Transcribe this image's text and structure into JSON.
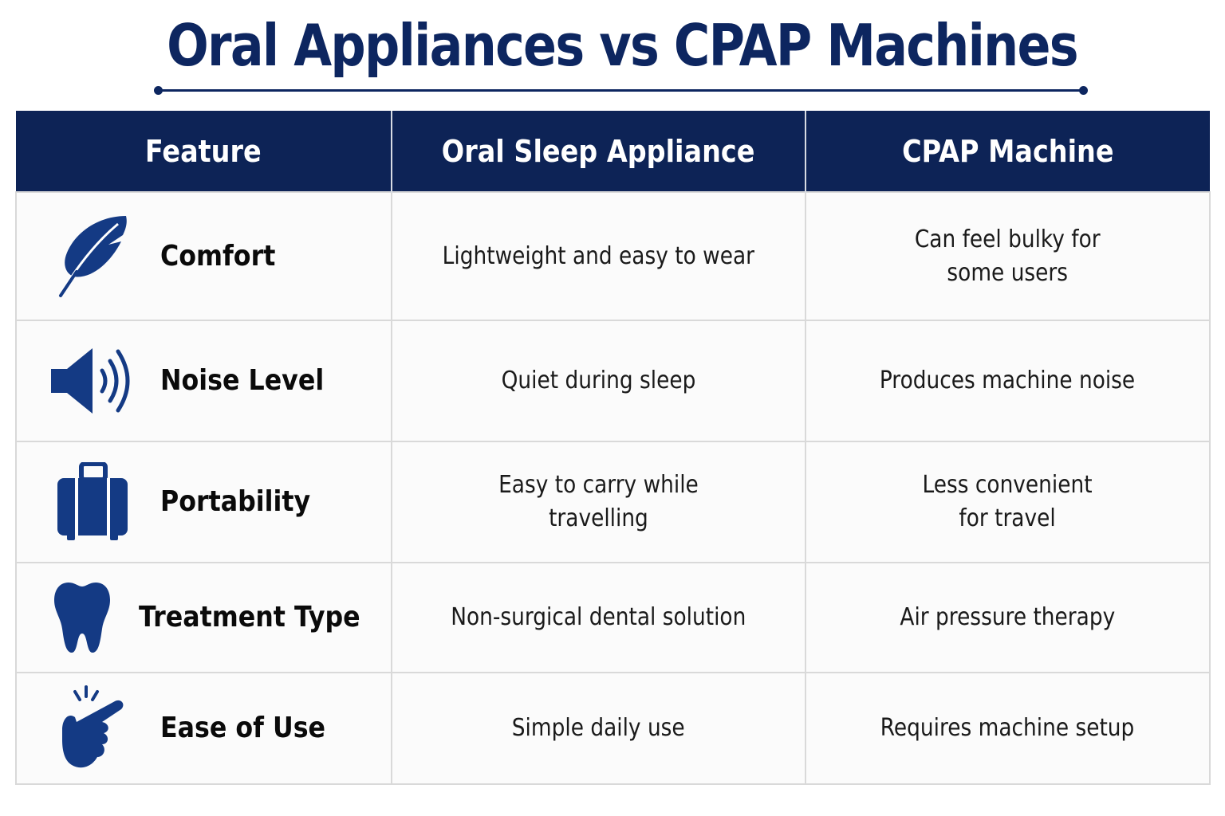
{
  "title": "Oral Appliances vs CPAP Machines",
  "colors": {
    "navy": "#0d2356",
    "icon": "#143a84",
    "title": "#0d2660"
  },
  "table": {
    "headers": [
      "Feature",
      "Oral Sleep Appliance",
      "CPAP Machine"
    ],
    "rows": [
      {
        "icon": "feather-icon",
        "feature": "Comfort",
        "oral": "Lightweight and easy to wear",
        "cpap": "Can feel bulky for\nsome users"
      },
      {
        "icon": "speaker-icon",
        "feature": "Noise Level",
        "oral": "Quiet during sleep",
        "cpap": "Produces machine noise"
      },
      {
        "icon": "suitcase-icon",
        "feature": "Portability",
        "oral": "Easy to carry while\ntravelling",
        "cpap": "Less convenient\nfor travel"
      },
      {
        "icon": "tooth-icon",
        "feature": "Treatment Type",
        "oral": "Non-surgical dental solution",
        "cpap": "Air pressure therapy"
      },
      {
        "icon": "hand-tap-icon",
        "feature": "Ease of Use",
        "oral": "Simple daily use",
        "cpap": "Requires machine setup"
      }
    ]
  }
}
